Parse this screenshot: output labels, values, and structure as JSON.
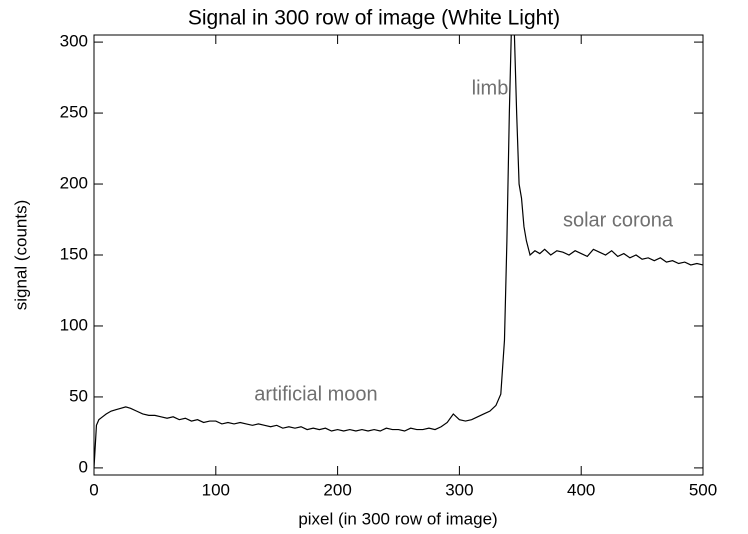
{
  "chart_data": {
    "type": "line",
    "title": "Signal in 300 row of image (White Light)",
    "xlabel": "pixel (in 300 row of image)",
    "ylabel": "signal (counts)",
    "x": [
      0,
      2,
      4,
      7,
      10,
      14,
      18,
      22,
      26,
      30,
      35,
      40,
      45,
      50,
      55,
      60,
      65,
      70,
      75,
      80,
      85,
      90,
      95,
      100,
      105,
      110,
      115,
      120,
      125,
      130,
      135,
      140,
      145,
      150,
      155,
      160,
      165,
      170,
      175,
      180,
      185,
      190,
      195,
      200,
      205,
      210,
      215,
      220,
      225,
      230,
      235,
      240,
      245,
      250,
      255,
      260,
      265,
      270,
      275,
      280,
      285,
      290,
      295,
      300,
      305,
      310,
      315,
      320,
      325,
      330,
      334,
      337,
      339,
      341,
      343,
      345,
      347,
      349,
      351,
      353,
      355,
      358,
      362,
      366,
      370,
      375,
      380,
      385,
      390,
      395,
      400,
      405,
      410,
      415,
      420,
      425,
      430,
      435,
      440,
      445,
      450,
      455,
      460,
      465,
      470,
      475,
      480,
      485,
      490,
      495,
      500
    ],
    "values": [
      0,
      30,
      34,
      36,
      38,
      40,
      41,
      42,
      43,
      42,
      40,
      38,
      37,
      37,
      36,
      35,
      36,
      34,
      35,
      33,
      34,
      32,
      33,
      33,
      31,
      32,
      31,
      32,
      31,
      30,
      31,
      30,
      29,
      30,
      28,
      29,
      28,
      29,
      27,
      28,
      27,
      28,
      26,
      27,
      26,
      27,
      26,
      27,
      26,
      27,
      26,
      28,
      27,
      27,
      26,
      28,
      27,
      27,
      28,
      27,
      29,
      32,
      38,
      34,
      33,
      34,
      36,
      38,
      40,
      44,
      52,
      90,
      160,
      250,
      320,
      310,
      250,
      200,
      190,
      170,
      160,
      150,
      153,
      151,
      154,
      150,
      153,
      152,
      150,
      153,
      151,
      149,
      154,
      152,
      150,
      153,
      149,
      151,
      148,
      150,
      147,
      148,
      146,
      148,
      145,
      146,
      144,
      145,
      143,
      144,
      143
    ],
    "color": "#000000",
    "xlim": [
      0,
      500
    ],
    "ylim": [
      -5,
      305
    ],
    "xticks": [
      0,
      100,
      200,
      300,
      400,
      500
    ],
    "yticks": [
      0,
      50,
      100,
      150,
      200,
      250,
      300
    ],
    "annotations": [
      "limb",
      "artificial moon",
      "solar corona"
    ]
  }
}
